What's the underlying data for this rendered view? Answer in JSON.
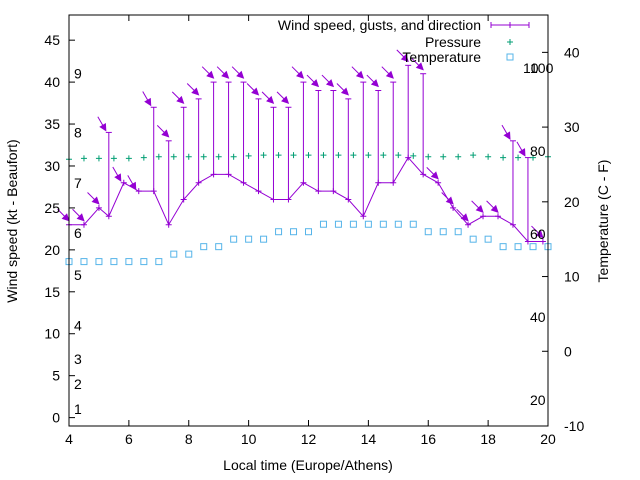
{
  "chart_data": {
    "type": "line",
    "xlabel": "Local time (Europe/Athens)",
    "ylabel": "Wind speed (kt - Beaufort)",
    "y2label": "Temperature (C - F)",
    "xlim": [
      4,
      20
    ],
    "ylim": [
      -1,
      48
    ],
    "y2lim": [
      -10,
      45
    ],
    "xticks": [
      4,
      6,
      8,
      10,
      12,
      14,
      16,
      18,
      20
    ],
    "yticks": [
      0,
      5,
      10,
      15,
      20,
      25,
      30,
      35,
      40,
      45
    ],
    "y2ticks": [
      -10,
      0,
      10,
      20,
      30,
      40
    ],
    "beaufort_labels": [
      {
        "y": 1,
        "text": "1"
      },
      {
        "y": 4,
        "text": "2"
      },
      {
        "y": 7,
        "text": "3"
      },
      {
        "y": 11,
        "text": "4"
      },
      {
        "y": 17,
        "text": "5"
      },
      {
        "y": 22,
        "text": "6"
      },
      {
        "y": 28,
        "text": "7"
      },
      {
        "y": 34,
        "text": "8"
      },
      {
        "y": 41,
        "text": "9"
      },
      {
        "y": 42,
        "text": "10"
      }
    ],
    "fahrenheit_labels": [
      {
        "y": 20,
        "text": "20"
      },
      {
        "y": 40,
        "text": "40"
      },
      {
        "y": 60,
        "text": "60"
      },
      {
        "y": 80,
        "text": "80"
      },
      {
        "y": 100,
        "text": "100"
      }
    ],
    "legend": [
      {
        "name": "Wind speed, gusts, and direction",
        "marker": "errorbar",
        "color": "#9400d3"
      },
      {
        "name": "Pressure",
        "marker": "plus",
        "color": "#009e73"
      },
      {
        "name": "Temperature",
        "marker": "square",
        "color": "#56b4e9"
      }
    ],
    "series": [
      {
        "name": "Wind speed, gusts, and direction",
        "color": "#9400d3",
        "x": [
          4.0,
          4.5,
          5.0,
          5.33,
          5.83,
          6.33,
          6.83,
          7.33,
          7.83,
          8.33,
          8.83,
          9.33,
          9.83,
          10.33,
          10.83,
          11.33,
          11.83,
          12.33,
          12.83,
          13.33,
          13.83,
          14.33,
          14.83,
          15.33,
          15.83,
          16.33,
          16.83,
          17.33,
          17.83,
          18.33,
          18.83,
          19.33,
          19.83
        ],
        "y": [
          23,
          23,
          25,
          24,
          28,
          27,
          27,
          23,
          26,
          28,
          29,
          29,
          28,
          27,
          26,
          26,
          28,
          27,
          27,
          26,
          24,
          28,
          28,
          31,
          29,
          28,
          25,
          23,
          24,
          24,
          23,
          21,
          21
        ],
        "gust": [
          23,
          23,
          25,
          34,
          28,
          27,
          37,
          33,
          37,
          38,
          40,
          40,
          40,
          38,
          37,
          37,
          40,
          39,
          39,
          38,
          40,
          39,
          40,
          42,
          41,
          28,
          25,
          23,
          24,
          24,
          33,
          31,
          21
        ],
        "direction_deg": [
          135,
          135,
          135,
          150,
          150,
          150,
          150,
          135,
          135,
          135,
          135,
          135,
          135,
          135,
          135,
          135,
          135,
          135,
          135,
          135,
          135,
          135,
          135,
          135,
          135,
          135,
          135,
          135,
          135,
          135,
          150,
          150,
          135
        ]
      },
      {
        "name": "Pressure",
        "color": "#009e73",
        "x": [
          4.0,
          4.5,
          5.0,
          5.5,
          6.0,
          6.5,
          7.0,
          7.5,
          8.0,
          8.5,
          9.0,
          9.5,
          10.0,
          10.5,
          11.0,
          11.5,
          12.0,
          12.5,
          13.0,
          13.5,
          14.0,
          14.5,
          15.0,
          15.5,
          16.0,
          16.5,
          17.0,
          17.5,
          18.0,
          18.5,
          19.0,
          19.5,
          20.0
        ],
        "y": [
          30.8,
          30.9,
          30.9,
          30.9,
          30.9,
          31.0,
          31.1,
          31.1,
          31.1,
          31.1,
          31.1,
          31.1,
          31.2,
          31.3,
          31.3,
          31.3,
          31.3,
          31.3,
          31.3,
          31.3,
          31.3,
          31.3,
          31.3,
          31.2,
          31.1,
          31.1,
          31.1,
          31.3,
          31.1,
          31.0,
          31.0,
          31.0,
          31.1
        ]
      },
      {
        "name": "Temperature",
        "color": "#56b4e9",
        "axis": "y2",
        "x": [
          4.0,
          4.5,
          5.0,
          5.5,
          6.0,
          6.5,
          7.0,
          7.5,
          8.0,
          8.5,
          9.0,
          9.5,
          10.0,
          10.5,
          11.0,
          11.5,
          12.0,
          12.5,
          13.0,
          13.5,
          14.0,
          14.5,
          15.0,
          15.5,
          16.0,
          16.5,
          17.0,
          17.5,
          18.0,
          18.5,
          19.0,
          19.5,
          20.0
        ],
        "y": [
          12,
          12,
          12,
          12,
          12,
          12,
          12,
          13,
          13,
          14,
          14,
          15,
          15,
          15,
          16,
          16,
          16,
          17,
          17,
          17,
          17,
          17,
          17,
          17,
          16,
          16,
          16,
          15,
          15,
          14,
          14,
          14,
          14
        ]
      }
    ]
  }
}
